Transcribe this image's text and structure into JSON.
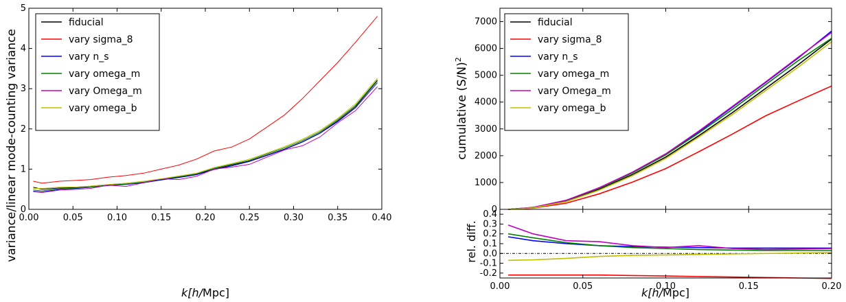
{
  "chart_data": [
    {
      "type": "line",
      "xlabel_prefix": "k[h/",
      "xlabel_unit": "Mpc",
      "xlabel_suffix": "]",
      "ylabel": "variance/linear mode-counting variance",
      "xlim": [
        0,
        0.4
      ],
      "ylim": [
        0,
        5
      ],
      "xticks": [
        "0.00",
        "0.05",
        "0.10",
        "0.15",
        "0.20",
        "0.25",
        "0.30",
        "0.35",
        "0.40"
      ],
      "yticks": [
        "0",
        "1",
        "2",
        "3",
        "4",
        "5"
      ],
      "legend_position": "top-left",
      "x": [
        0.005,
        0.015,
        0.035,
        0.055,
        0.07,
        0.09,
        0.11,
        0.13,
        0.15,
        0.17,
        0.19,
        0.21,
        0.23,
        0.25,
        0.27,
        0.29,
        0.31,
        0.33,
        0.35,
        0.37,
        0.395
      ],
      "series": [
        {
          "name": "fiducial",
          "color": "#000000",
          "values": [
            0.55,
            0.5,
            0.53,
            0.54,
            0.56,
            0.6,
            0.63,
            0.67,
            0.74,
            0.8,
            0.87,
            1.0,
            1.1,
            1.2,
            1.35,
            1.5,
            1.68,
            1.9,
            2.2,
            2.55,
            3.2
          ]
        },
        {
          "name": "vary sigma_8",
          "color": "#ff0000",
          "values": [
            0.7,
            0.65,
            0.7,
            0.72,
            0.74,
            0.8,
            0.84,
            0.9,
            1.0,
            1.1,
            1.25,
            1.45,
            1.55,
            1.75,
            2.05,
            2.35,
            2.75,
            3.2,
            3.65,
            4.15,
            4.8
          ]
        },
        {
          "name": "vary n_s",
          "color": "#0000ff",
          "values": [
            0.45,
            0.43,
            0.5,
            0.52,
            0.55,
            0.59,
            0.62,
            0.66,
            0.73,
            0.79,
            0.86,
            0.99,
            1.08,
            1.19,
            1.34,
            1.49,
            1.67,
            1.89,
            2.18,
            2.52,
            3.15
          ]
        },
        {
          "name": "vary omega_m",
          "color": "#008000",
          "values": [
            0.48,
            0.46,
            0.51,
            0.53,
            0.55,
            0.6,
            0.63,
            0.68,
            0.75,
            0.81,
            0.88,
            1.02,
            1.12,
            1.22,
            1.38,
            1.53,
            1.71,
            1.93,
            2.23,
            2.58,
            3.22
          ]
        },
        {
          "name": "vary Omega_m",
          "color": "#bf00bf",
          "values": [
            0.44,
            0.42,
            0.48,
            0.5,
            0.52,
            0.6,
            0.57,
            0.66,
            0.76,
            0.74,
            0.82,
            1.0,
            1.05,
            1.12,
            1.3,
            1.48,
            1.58,
            1.8,
            2.15,
            2.45,
            3.05
          ]
        },
        {
          "name": "vary omega_b",
          "color": "#bfbf00",
          "values": [
            0.52,
            0.52,
            0.55,
            0.56,
            0.58,
            0.62,
            0.65,
            0.7,
            0.76,
            0.83,
            0.9,
            1.04,
            1.14,
            1.25,
            1.4,
            1.56,
            1.74,
            1.96,
            2.26,
            2.62,
            3.26
          ]
        }
      ]
    },
    {
      "type": "line",
      "xlabel_prefix": "k[h/",
      "xlabel_unit": "Mpc",
      "xlabel_suffix": "]",
      "ylabel": "cumulative (S/N)",
      "ylabel_sup": "2",
      "xlim": [
        0,
        0.2
      ],
      "top_panel": {
        "ylim": [
          0,
          7500
        ],
        "yticks": [
          "0",
          "1000",
          "2000",
          "3000",
          "4000",
          "5000",
          "6000",
          "7000"
        ],
        "legend_position": "top-left",
        "x": [
          0.005,
          0.02,
          0.04,
          0.06,
          0.08,
          0.1,
          0.12,
          0.14,
          0.16,
          0.18,
          0.2
        ],
        "series": [
          {
            "name": "fiducial",
            "color": "#000000",
            "values": [
              0,
              60,
              300,
              750,
              1300,
              1950,
              2750,
              3600,
              4500,
              5400,
              6350
            ]
          },
          {
            "name": "vary sigma_8",
            "color": "#ff0000",
            "values": [
              0,
              45,
              230,
              580,
              1020,
              1520,
              2150,
              2800,
              3480,
              4050,
              4600
            ]
          },
          {
            "name": "vary n_s",
            "color": "#0000ff",
            "values": [
              0,
              70,
              330,
              800,
              1380,
              2060,
              2890,
              3800,
              4720,
              5650,
              6650
            ]
          },
          {
            "name": "vary omega_m",
            "color": "#008000",
            "values": [
              0,
              68,
              330,
              790,
              1360,
              2030,
              2850,
              3720,
              4640,
              5550,
              6380
            ]
          },
          {
            "name": "vary Omega_m",
            "color": "#bf00bf",
            "values": [
              0,
              75,
              340,
              810,
              1390,
              2070,
              2920,
              3830,
              4740,
              5680,
              6600
            ]
          },
          {
            "name": "vary omega_b",
            "color": "#bfbf00",
            "values": [
              0,
              55,
              285,
              720,
              1260,
              1900,
              2700,
              3530,
              4420,
              5310,
              6250
            ]
          }
        ]
      },
      "bottom_panel": {
        "ylabel": "rel. diff.",
        "ylim": [
          -0.25,
          0.45
        ],
        "yticks": [
          "-0.2",
          "-0.1",
          "0.0",
          "0.1",
          "0.2",
          "0.3",
          "0.4"
        ],
        "x": [
          0.005,
          0.02,
          0.04,
          0.06,
          0.08,
          0.1,
          0.12,
          0.14,
          0.16,
          0.18,
          0.2
        ],
        "series": [
          {
            "name": "vary sigma_8",
            "color": "#ff0000",
            "values": [
              -0.22,
              -0.22,
              -0.22,
              -0.22,
              -0.225,
              -0.23,
              -0.235,
              -0.24,
              -0.245,
              -0.25,
              -0.255
            ]
          },
          {
            "name": "vary n_s",
            "color": "#0000ff",
            "values": [
              0.17,
              0.13,
              0.1,
              0.08,
              0.07,
              0.065,
              0.06,
              0.055,
              0.055,
              0.055,
              0.055
            ]
          },
          {
            "name": "vary omega_m",
            "color": "#008000",
            "values": [
              0.2,
              0.16,
              0.11,
              0.08,
              0.06,
              0.05,
              0.04,
              0.035,
              0.03,
              0.03,
              0.03
            ]
          },
          {
            "name": "vary Omega_m",
            "color": "#bf00bf",
            "values": [
              0.29,
              0.2,
              0.13,
              0.12,
              0.08,
              0.06,
              0.08,
              0.05,
              0.04,
              0.045,
              0.05
            ]
          },
          {
            "name": "vary omega_b",
            "color": "#bfbf00",
            "values": [
              -0.07,
              -0.065,
              -0.05,
              -0.03,
              -0.02,
              -0.015,
              -0.01,
              -0.005,
              0.0,
              0.005,
              0.01
            ]
          }
        ]
      }
    }
  ]
}
